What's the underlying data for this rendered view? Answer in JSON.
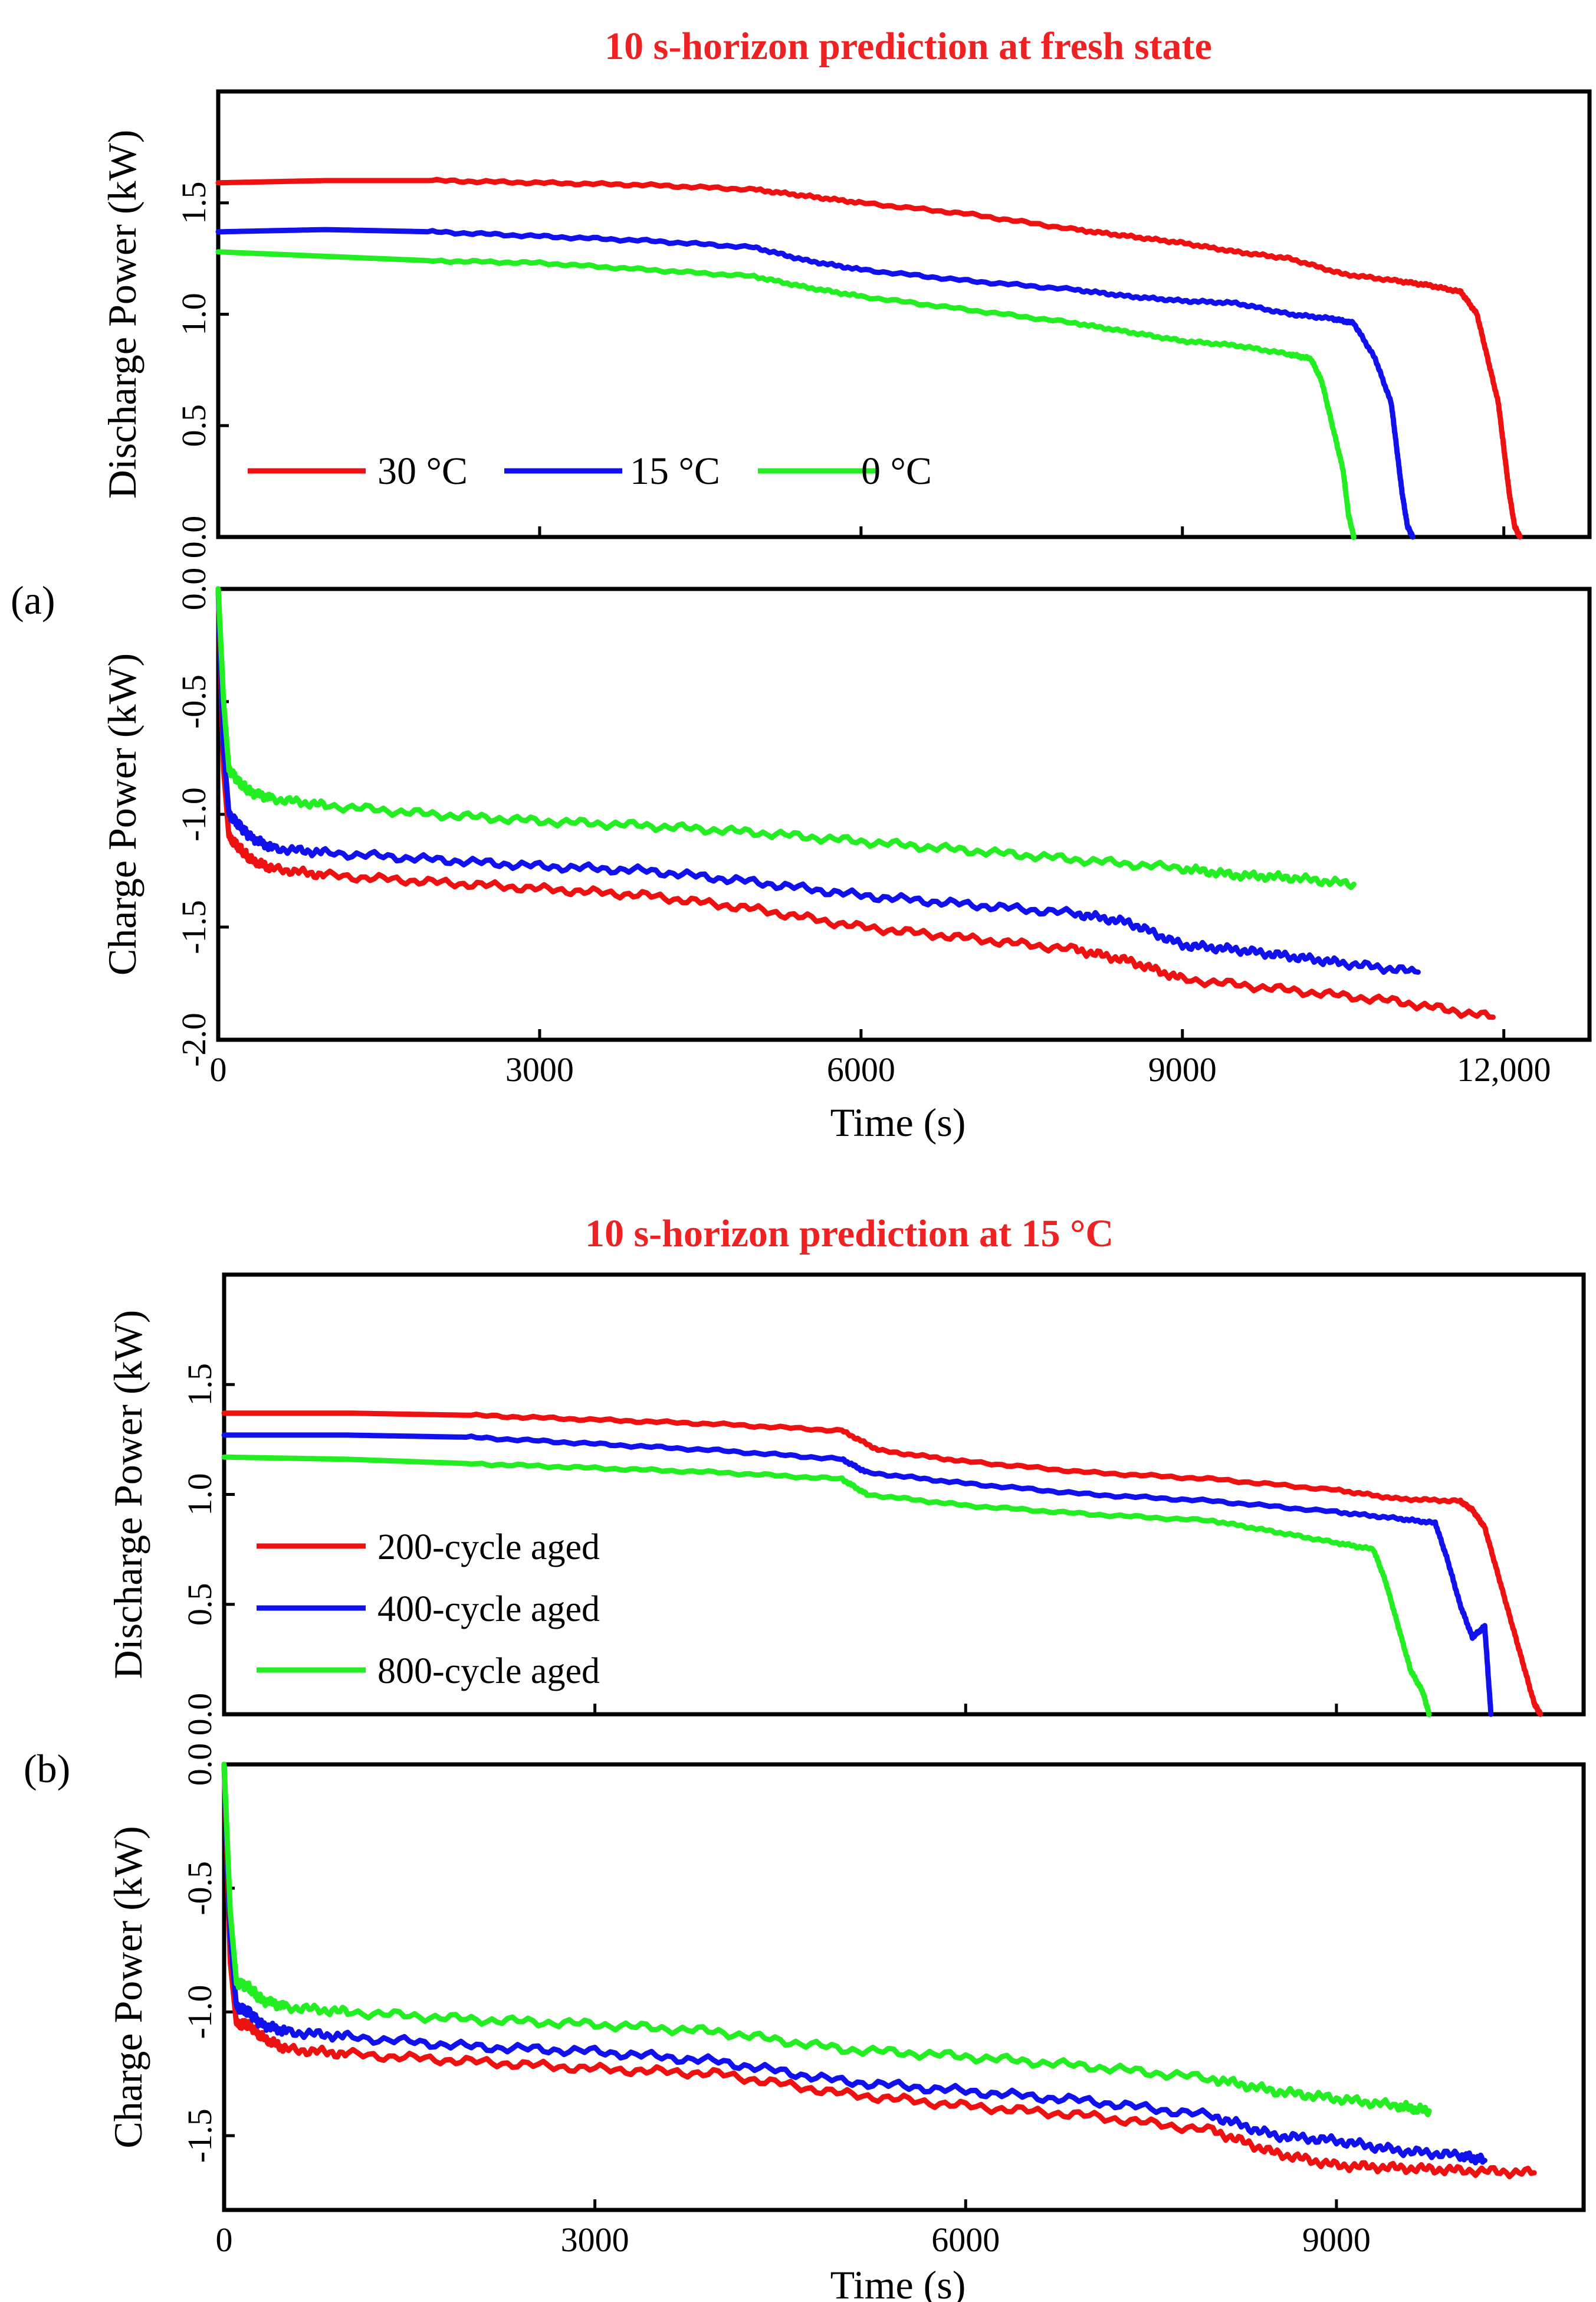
{
  "panel_labels": {
    "a": "(a)",
    "b": "(b)"
  },
  "chart_data": [
    {
      "id": "a-top",
      "type": "line",
      "title": "10 s-horizon prediction at fresh state",
      "xlabel": "",
      "ylabel": "Discharge Power (kW)",
      "xlim": [
        0,
        12800
      ],
      "ylim": [
        0,
        2.0
      ],
      "xticks": [
        0,
        3000,
        6000,
        9000,
        12000
      ],
      "yticks": [
        {
          "value": 0.0,
          "label": "0.0"
        },
        {
          "value": 0.5,
          "label": "0.5"
        },
        {
          "value": 1.0,
          "label": "1.0"
        },
        {
          "value": 1.5,
          "label": "1.5"
        }
      ],
      "legend": "bottom-left, horizontal",
      "series": [
        {
          "name": "30 °C",
          "color": "#ee1111",
          "x": [
            0,
            1000,
            2000,
            3000,
            4000,
            5000,
            5500,
            6000,
            7000,
            8000,
            8500,
            9000,
            9500,
            10000,
            10500,
            11000,
            11300,
            11600,
            11750,
            11850,
            11950,
            12000,
            12050,
            12100,
            12150
          ],
          "y": [
            1.59,
            1.6,
            1.6,
            1.59,
            1.58,
            1.56,
            1.53,
            1.5,
            1.45,
            1.38,
            1.35,
            1.32,
            1.28,
            1.25,
            1.18,
            1.15,
            1.13,
            1.1,
            1.0,
            0.8,
            0.6,
            0.4,
            0.2,
            0.05,
            0.0
          ]
        },
        {
          "name": "15 °C",
          "color": "#1111ee",
          "x": [
            0,
            1000,
            2000,
            3000,
            4000,
            5000,
            5500,
            6000,
            7000,
            8000,
            8500,
            9000,
            9500,
            10000,
            10400,
            10600,
            10800,
            10950,
            11000,
            11050,
            11100,
            11150
          ],
          "y": [
            1.37,
            1.38,
            1.37,
            1.35,
            1.33,
            1.3,
            1.24,
            1.2,
            1.15,
            1.11,
            1.08,
            1.06,
            1.05,
            1.0,
            0.98,
            0.96,
            0.8,
            0.6,
            0.4,
            0.2,
            0.05,
            0.0
          ]
        },
        {
          "name": "0 °C",
          "color": "#22ee22",
          "x": [
            0,
            1000,
            2000,
            3000,
            4000,
            5000,
            5500,
            6000,
            7000,
            8000,
            8500,
            9000,
            9500,
            10000,
            10200,
            10300,
            10400,
            10500,
            10550,
            10600
          ],
          "y": [
            1.28,
            1.26,
            1.24,
            1.23,
            1.2,
            1.17,
            1.12,
            1.08,
            1.02,
            0.96,
            0.92,
            0.88,
            0.86,
            0.82,
            0.8,
            0.7,
            0.5,
            0.3,
            0.1,
            0.0
          ]
        }
      ]
    },
    {
      "id": "a-bottom",
      "type": "line",
      "title": "",
      "xlabel": "Time (s)",
      "ylabel": "Charge Power (kW)",
      "xlim": [
        0,
        12800
      ],
      "ylim": [
        -2.0,
        0.0
      ],
      "xticks": [
        {
          "value": 0,
          "label": "0"
        },
        {
          "value": 3000,
          "label": "3000"
        },
        {
          "value": 6000,
          "label": "6000"
        },
        {
          "value": 9000,
          "label": "9000"
        },
        {
          "value": 12000,
          "label": "12,000"
        }
      ],
      "yticks": [
        {
          "value": -2.0,
          "label": "-2.0"
        },
        {
          "value": -1.5,
          "label": "-1.5"
        },
        {
          "value": -1.0,
          "label": "-1.0"
        },
        {
          "value": -0.5,
          "label": "-0.5"
        },
        {
          "value": 0.0,
          "label": "0.0"
        }
      ],
      "series": [
        {
          "name": "30 °C",
          "color": "#ee1111",
          "x": [
            0,
            50,
            100,
            200,
            300,
            500,
            1000,
            2000,
            3000,
            4000,
            5000,
            6000,
            7000,
            8000,
            8500,
            9000,
            10000,
            11000,
            11900
          ],
          "y": [
            0.0,
            -0.8,
            -1.1,
            -1.15,
            -1.2,
            -1.24,
            -1.27,
            -1.3,
            -1.33,
            -1.36,
            -1.42,
            -1.5,
            -1.55,
            -1.6,
            -1.65,
            -1.73,
            -1.78,
            -1.83,
            -1.9
          ]
        },
        {
          "name": "15 °C",
          "color": "#1111ee",
          "x": [
            0,
            50,
            100,
            200,
            300,
            500,
            1000,
            2000,
            3000,
            4000,
            5000,
            6000,
            7000,
            8000,
            8500,
            9000,
            9500,
            10000,
            10500,
            11200
          ],
          "y": [
            0.0,
            -0.7,
            -1.0,
            -1.05,
            -1.1,
            -1.15,
            -1.17,
            -1.2,
            -1.23,
            -1.25,
            -1.3,
            -1.36,
            -1.4,
            -1.44,
            -1.48,
            -1.58,
            -1.6,
            -1.63,
            -1.66,
            -1.7
          ]
        },
        {
          "name": "0 °C",
          "color": "#22ee22",
          "x": [
            0,
            50,
            100,
            200,
            300,
            500,
            1000,
            2000,
            3000,
            4000,
            5000,
            6000,
            7000,
            8000,
            9000,
            9500,
            10000,
            10600
          ],
          "y": [
            0.0,
            -0.5,
            -0.8,
            -0.86,
            -0.9,
            -0.93,
            -0.96,
            -1.0,
            -1.03,
            -1.05,
            -1.08,
            -1.12,
            -1.16,
            -1.2,
            -1.24,
            -1.27,
            -1.28,
            -1.31
          ]
        }
      ]
    },
    {
      "id": "b-top",
      "type": "line",
      "title": "10 s-horizon prediction at 15 °C",
      "xlabel": "",
      "ylabel": "Discharge Power (kW)",
      "xlim": [
        0,
        11000
      ],
      "ylim": [
        0,
        2.0
      ],
      "xticks": [
        0,
        3000,
        6000,
        9000
      ],
      "yticks": [
        {
          "value": 0.0,
          "label": "0.0"
        },
        {
          "value": 0.5,
          "label": "0.5"
        },
        {
          "value": 1.0,
          "label": "1.0"
        },
        {
          "value": 1.5,
          "label": "1.5"
        }
      ],
      "legend": "bottom-left, vertical",
      "series": [
        {
          "name": "200-cycle aged",
          "color": "#ee1111",
          "x": [
            0,
            1000,
            2000,
            3000,
            4000,
            5000,
            5300,
            6000,
            7000,
            8000,
            9000,
            9500,
            10000,
            10100,
            10200,
            10300,
            10400,
            10500,
            10600,
            10650
          ],
          "y": [
            1.37,
            1.37,
            1.36,
            1.34,
            1.32,
            1.29,
            1.2,
            1.15,
            1.1,
            1.07,
            1.02,
            0.98,
            0.97,
            0.93,
            0.85,
            0.65,
            0.45,
            0.25,
            0.05,
            0.0
          ]
        },
        {
          "name": "400-cycle aged",
          "color": "#1111ee",
          "x": [
            0,
            1000,
            2000,
            3000,
            4000,
            5000,
            5200,
            6000,
            7000,
            8000,
            9000,
            9500,
            9800,
            9900,
            10000,
            10100,
            10200,
            10250
          ],
          "y": [
            1.27,
            1.27,
            1.26,
            1.23,
            1.2,
            1.16,
            1.1,
            1.05,
            1.0,
            0.97,
            0.92,
            0.89,
            0.87,
            0.7,
            0.5,
            0.35,
            0.4,
            0.0
          ]
        },
        {
          "name": "800-cycle aged",
          "color": "#22ee22",
          "x": [
            0,
            1000,
            2000,
            3000,
            4000,
            5000,
            5200,
            6000,
            7000,
            8000,
            8500,
            9000,
            9300,
            9400,
            9500,
            9600,
            9700,
            9750
          ],
          "y": [
            1.17,
            1.16,
            1.14,
            1.12,
            1.1,
            1.07,
            1.0,
            0.95,
            0.91,
            0.88,
            0.83,
            0.78,
            0.75,
            0.6,
            0.4,
            0.2,
            0.1,
            0.0
          ]
        }
      ]
    },
    {
      "id": "b-bottom",
      "type": "line",
      "title": "",
      "xlabel": "Time (s)",
      "ylabel": "Charge Power (kW)",
      "xlim": [
        0,
        11000
      ],
      "ylim": [
        -1.8,
        0.0
      ],
      "xticks": [
        {
          "value": 0,
          "label": "0"
        },
        {
          "value": 3000,
          "label": "3000"
        },
        {
          "value": 6000,
          "label": "6000"
        },
        {
          "value": 9000,
          "label": "9000"
        }
      ],
      "yticks": [
        {
          "value": -1.5,
          "label": "-1.5"
        },
        {
          "value": -1.0,
          "label": "-1.0"
        },
        {
          "value": -0.5,
          "label": "-0.5"
        },
        {
          "value": 0.0,
          "label": "0.0"
        }
      ],
      "series": [
        {
          "name": "200-cycle aged",
          "color": "#ee1111",
          "x": [
            0,
            50,
            100,
            200,
            300,
            500,
            1000,
            2000,
            3000,
            4000,
            5000,
            6000,
            7000,
            8000,
            8500,
            9000,
            9500,
            10000,
            10600
          ],
          "y": [
            0.0,
            -0.8,
            -1.05,
            -1.05,
            -1.1,
            -1.15,
            -1.17,
            -1.2,
            -1.23,
            -1.25,
            -1.33,
            -1.38,
            -1.42,
            -1.48,
            -1.57,
            -1.62,
            -1.63,
            -1.64,
            -1.65
          ]
        },
        {
          "name": "400-cycle aged",
          "color": "#1111ee",
          "x": [
            0,
            50,
            100,
            200,
            300,
            500,
            1000,
            2000,
            3000,
            4000,
            5000,
            6000,
            7000,
            8000,
            8500,
            9000,
            9500,
            10000,
            10200
          ],
          "y": [
            0.0,
            -0.7,
            -0.98,
            -1.0,
            -1.05,
            -1.08,
            -1.1,
            -1.14,
            -1.16,
            -1.2,
            -1.28,
            -1.32,
            -1.36,
            -1.42,
            -1.5,
            -1.52,
            -1.56,
            -1.58,
            -1.6
          ]
        },
        {
          "name": "800-cycle aged",
          "color": "#22ee22",
          "x": [
            0,
            50,
            100,
            200,
            300,
            500,
            1000,
            2000,
            3000,
            4000,
            5000,
            6000,
            7000,
            8000,
            8500,
            9000,
            9500,
            9750
          ],
          "y": [
            0.0,
            -0.6,
            -0.88,
            -0.9,
            -0.95,
            -0.98,
            -1.0,
            -1.03,
            -1.05,
            -1.08,
            -1.15,
            -1.18,
            -1.22,
            -1.27,
            -1.32,
            -1.35,
            -1.38,
            -1.4
          ]
        }
      ]
    }
  ]
}
